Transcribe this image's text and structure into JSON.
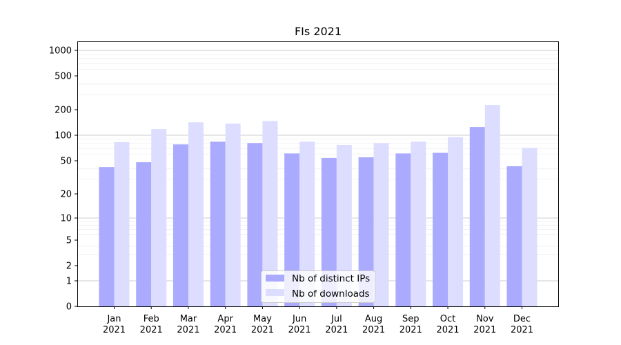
{
  "chart_data": {
    "type": "bar",
    "title": "FIs 2021",
    "categories": [
      "Jan\n2021",
      "Feb\n2021",
      "Mar\n2021",
      "Apr\n2021",
      "May\n2021",
      "Jun\n2021",
      "Jul\n2021",
      "Aug\n2021",
      "Sep\n2021",
      "Oct\n2021",
      "Nov\n2021",
      "Dec\n2021"
    ],
    "series": [
      {
        "name": "Nb of distinct IPs",
        "color": "#aaaaff",
        "values": [
          42,
          48,
          78,
          84,
          81,
          61,
          54,
          55,
          61,
          62,
          125,
          43
        ]
      },
      {
        "name": "Nb of downloads",
        "color": "#ddddff",
        "values": [
          83,
          118,
          142,
          137,
          147,
          84,
          77,
          81,
          84,
          95,
          228,
          71
        ]
      }
    ],
    "y_scale": "symlog",
    "ylim": [
      0,
      1000
    ],
    "yticks": [
      0,
      1,
      2,
      5,
      10,
      20,
      50,
      100,
      200,
      500,
      1000
    ],
    "xlabel": "",
    "ylabel": "",
    "grid": true,
    "legend_position": "lower center"
  }
}
